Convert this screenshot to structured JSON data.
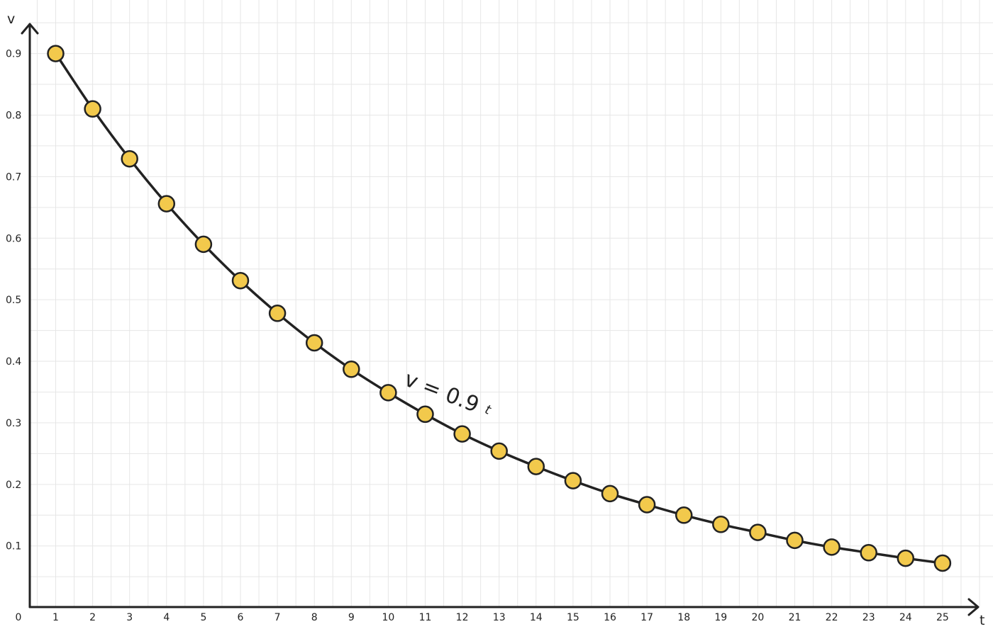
{
  "chart_data": {
    "type": "line",
    "title": "",
    "xlabel": "t",
    "ylabel": "v",
    "x_ticks": [
      "0",
      "1",
      "2",
      "3",
      "4",
      "5",
      "6",
      "7",
      "8",
      "9",
      "10",
      "11",
      "12",
      "13",
      "14",
      "15",
      "16",
      "17",
      "18",
      "19",
      "20",
      "21",
      "22",
      "23",
      "24",
      "25"
    ],
    "y_ticks": [
      "0.1",
      "0.2",
      "0.3",
      "0.4",
      "0.5",
      "0.6",
      "0.7",
      "0.8",
      "0.9"
    ],
    "xlim": [
      0,
      25.5
    ],
    "ylim": [
      0,
      0.9
    ],
    "grid": true,
    "annotation": {
      "base": "v = 0.9",
      "exponent": "t"
    },
    "series": [
      {
        "x": [
          1,
          2,
          3,
          4,
          5,
          6,
          7,
          8,
          9,
          10,
          11,
          12,
          13,
          14,
          15,
          16,
          17,
          18,
          19,
          20,
          21,
          22,
          23,
          24,
          25
        ],
        "y": [
          0.9,
          0.81,
          0.729,
          0.656,
          0.59,
          0.531,
          0.478,
          0.43,
          0.387,
          0.349,
          0.314,
          0.282,
          0.254,
          0.229,
          0.206,
          0.185,
          0.167,
          0.15,
          0.135,
          0.122,
          0.109,
          0.098,
          0.089,
          0.08,
          0.072
        ],
        "line_color": "#222222",
        "marker_fill": "#f2c94c",
        "marker_stroke": "#222222"
      }
    ],
    "colors": {
      "grid": "#e6e6e6",
      "axis": "#222222"
    }
  }
}
